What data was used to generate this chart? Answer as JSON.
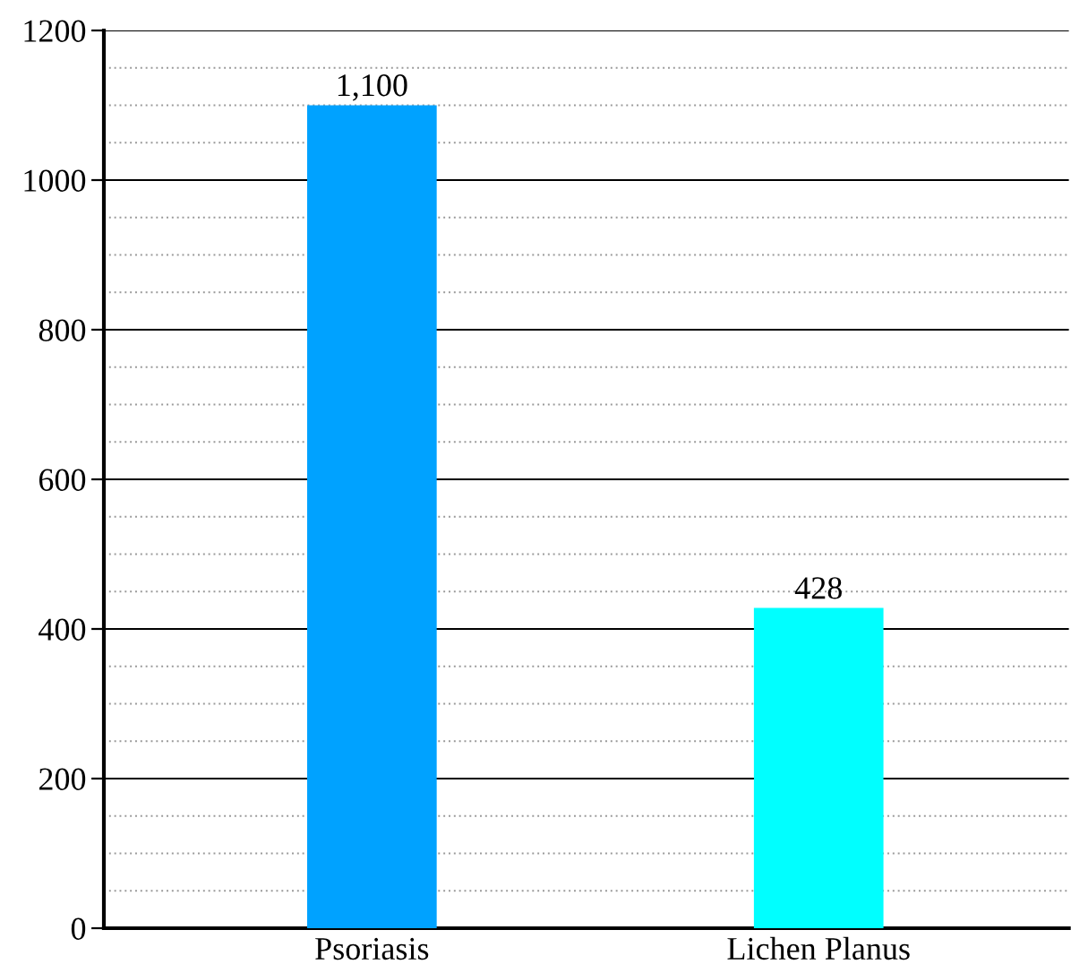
{
  "chart_data": {
    "type": "bar",
    "categories": [
      "Psoriasis",
      "Lichen Planus"
    ],
    "values": [
      1100,
      428
    ],
    "colors": [
      "#00a2ff",
      "#00ffff"
    ],
    "value_labels": [
      "1,100",
      "428"
    ],
    "ylim": [
      0,
      1200
    ],
    "yticks": [
      0,
      {
        "value": 50,
        "label": null
      },
      {
        "value": 100,
        "label": null
      },
      {
        "value": 150,
        "label": null
      },
      200,
      {
        "value": 250,
        "label": null
      },
      {
        "value": 300,
        "label": null
      },
      {
        "value": 350,
        "label": null
      },
      400,
      {
        "value": 450,
        "label": null
      },
      {
        "value": 500,
        "label": null
      },
      {
        "value": 550,
        "label": null
      },
      600,
      {
        "value": 650,
        "label": null
      },
      {
        "value": 700,
        "label": null
      },
      {
        "value": 750,
        "label": null
      },
      800,
      {
        "value": 850,
        "label": null
      },
      {
        "value": 900,
        "label": null
      },
      {
        "value": 950,
        "label": null
      },
      1000,
      {
        "value": 1050,
        "label": null
      },
      {
        "value": 1100,
        "label": null
      },
      {
        "value": 1150,
        "label": null
      },
      1200
    ],
    "grid": "y"
  }
}
